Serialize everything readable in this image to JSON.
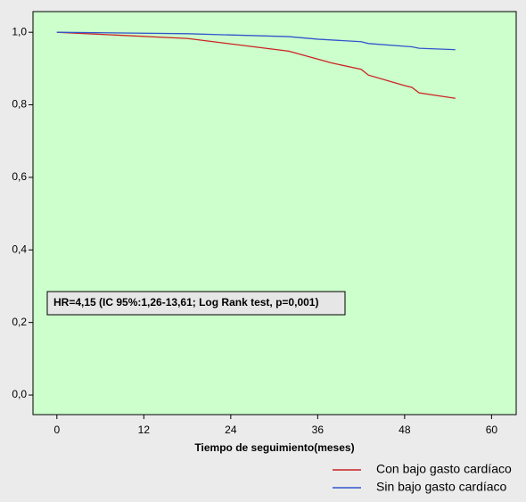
{
  "chart_data": {
    "type": "line",
    "xlabel": "Tiempo de seguimiento(meses)",
    "annotation": "HR=4,15 (IC 95%:1,26-13,61; Log Rank test, p=0,001)",
    "series": [
      {
        "name": "Con bajo gasto cardíaco",
        "color": "#cc2222",
        "x": [
          0,
          18,
          32,
          38,
          42,
          43,
          48,
          49,
          50,
          55
        ],
        "values": [
          1.0,
          0.983,
          0.948,
          0.915,
          0.898,
          0.882,
          0.853,
          0.848,
          0.833,
          0.818
        ]
      },
      {
        "name": "Sin bajo gasto cardíaco",
        "color": "#3355cc",
        "x": [
          0,
          18,
          32,
          36,
          42,
          43,
          49,
          50,
          55
        ],
        "values": [
          1.0,
          0.996,
          0.988,
          0.981,
          0.974,
          0.969,
          0.96,
          0.956,
          0.952
        ]
      }
    ],
    "xlim": [
      -3.3,
      63.4
    ],
    "xticks": [
      0,
      12,
      24,
      36,
      48,
      60
    ],
    "ylim": [
      -0.054,
      1.057
    ],
    "yticks": [
      {
        "value": 0,
        "label": "0,0"
      },
      {
        "value": 0.2,
        "label": "0,2"
      },
      {
        "value": 0.4,
        "label": "0,4"
      },
      {
        "value": 0.6,
        "label": "0,6"
      },
      {
        "value": 0.8,
        "label": "0,8"
      },
      {
        "value": 1.0,
        "label": "1,0"
      }
    ],
    "legend": "bottom-right"
  }
}
